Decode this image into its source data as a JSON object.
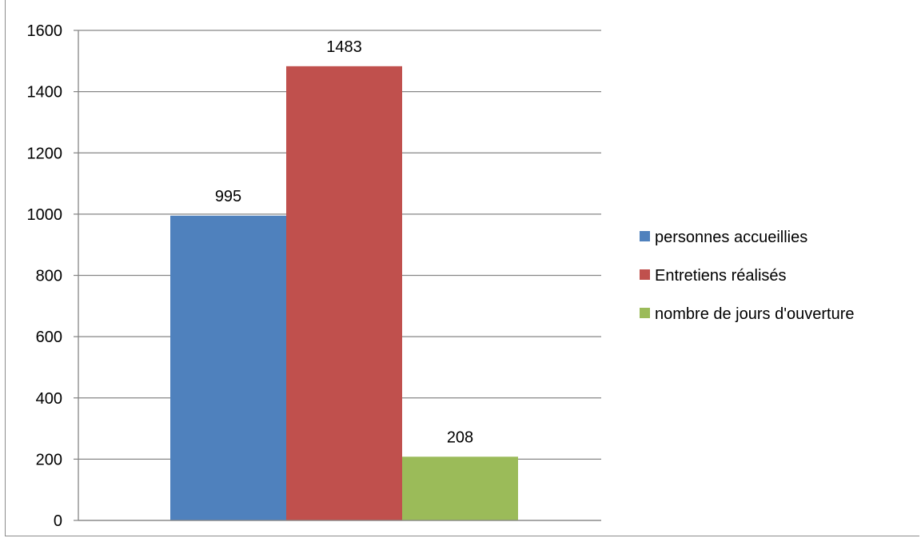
{
  "chart_data": {
    "type": "bar",
    "categories": [
      ""
    ],
    "series": [
      {
        "name": "personnes accueillies",
        "values": [
          995
        ],
        "color": "#4f81bd"
      },
      {
        "name": "Entretiens réalisés",
        "values": [
          1483
        ],
        "color": "#c0504d"
      },
      {
        "name": "nombre de jours d'ouverture",
        "values": [
          208
        ],
        "color": "#9bbb59"
      }
    ],
    "ylim": [
      0,
      1600
    ],
    "yticks": [
      "0",
      "200",
      "400",
      "600",
      "800",
      "1000",
      "1200",
      "1400",
      "1600"
    ],
    "data_labels": [
      "995",
      "1483",
      "208"
    ],
    "grid": true,
    "legend_position": "right",
    "gridline_color": "#868686"
  }
}
